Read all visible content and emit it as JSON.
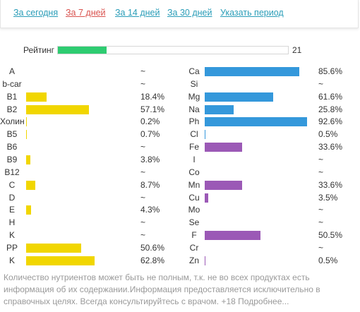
{
  "periods": [
    {
      "label": "За сегодня",
      "active": false
    },
    {
      "label": "За 7 дней",
      "active": true
    },
    {
      "label": "За 14 дней",
      "active": false
    },
    {
      "label": "За 30 дней",
      "active": false
    },
    {
      "label": "Указать период",
      "active": false
    }
  ],
  "rating": {
    "label": "Рейтинг",
    "value": "21",
    "fill_percent": 21
  },
  "colors": {
    "vitamin": "#f1d600",
    "mineral": "#3498db",
    "mineral_alt": "#9b59b6",
    "rating": "#2ecc71",
    "link": "#2a9db8",
    "link_active": "#d9534f"
  },
  "vitamins": [
    {
      "name": "A",
      "value": "~",
      "percent": 0
    },
    {
      "name": "b-car",
      "value": "~",
      "percent": 0
    },
    {
      "name": "B1",
      "value": "18.4%",
      "percent": 18.4
    },
    {
      "name": "B2",
      "value": "57.1%",
      "percent": 57.1
    },
    {
      "name": "Холин",
      "value": "0.2%",
      "percent": 0.2
    },
    {
      "name": "B5",
      "value": "0.7%",
      "percent": 0.7
    },
    {
      "name": "B6",
      "value": "~",
      "percent": 0
    },
    {
      "name": "B9",
      "value": "3.8%",
      "percent": 3.8
    },
    {
      "name": "B12",
      "value": "~",
      "percent": 0
    },
    {
      "name": "C",
      "value": "8.7%",
      "percent": 8.7
    },
    {
      "name": "D",
      "value": "~",
      "percent": 0
    },
    {
      "name": "E",
      "value": "4.3%",
      "percent": 4.3
    },
    {
      "name": "H",
      "value": "~",
      "percent": 0
    },
    {
      "name": "K",
      "value": "~",
      "percent": 0
    },
    {
      "name": "PP",
      "value": "50.6%",
      "percent": 50.6
    },
    {
      "name": "K",
      "value": "62.8%",
      "percent": 62.8
    }
  ],
  "minerals": [
    {
      "name": "Ca",
      "value": "85.6%",
      "percent": 85.6,
      "color": "#3498db"
    },
    {
      "name": "Si",
      "value": "~",
      "percent": 0,
      "color": "#3498db"
    },
    {
      "name": "Mg",
      "value": "61.6%",
      "percent": 61.6,
      "color": "#3498db"
    },
    {
      "name": "Na",
      "value": "25.8%",
      "percent": 25.8,
      "color": "#3498db"
    },
    {
      "name": "Ph",
      "value": "92.6%",
      "percent": 92.6,
      "color": "#3498db"
    },
    {
      "name": "Cl",
      "value": "0.5%",
      "percent": 0.5,
      "color": "#3498db"
    },
    {
      "name": "Fe",
      "value": "33.6%",
      "percent": 33.6,
      "color": "#9b59b6"
    },
    {
      "name": "I",
      "value": "~",
      "percent": 0,
      "color": "#9b59b6"
    },
    {
      "name": "Co",
      "value": "~",
      "percent": 0,
      "color": "#9b59b6"
    },
    {
      "name": "Mn",
      "value": "33.6%",
      "percent": 33.6,
      "color": "#9b59b6"
    },
    {
      "name": "Cu",
      "value": "3.5%",
      "percent": 3.5,
      "color": "#9b59b6"
    },
    {
      "name": "Mo",
      "value": "~",
      "percent": 0,
      "color": "#9b59b6"
    },
    {
      "name": "Se",
      "value": "~",
      "percent": 0,
      "color": "#9b59b6"
    },
    {
      "name": "F",
      "value": "50.5%",
      "percent": 50.5,
      "color": "#9b59b6"
    },
    {
      "name": "Cr",
      "value": "~",
      "percent": 0,
      "color": "#9b59b6"
    },
    {
      "name": "Zn",
      "value": "0.5%",
      "percent": 0.5,
      "color": "#9b59b6"
    }
  ],
  "note": "Количество нутриентов может быть не полным, т.к. не во всех продуктах есть информация об их содержании.Информация предоставляется исключительно в справочных целях. Всегда консультируйтесь с врачом. +18 Подробнее..."
}
